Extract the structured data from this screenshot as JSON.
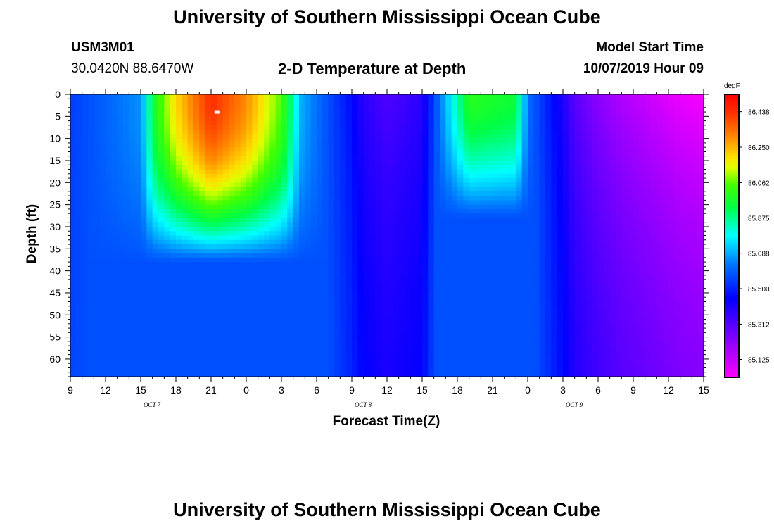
{
  "header": {
    "title": "University of Southern Mississippi Ocean Cube",
    "station_id": "USM3M01",
    "location": "30.0420N 88.6470W",
    "plot_title": "2-D Temperature at Depth",
    "model_start_label": "Model Start Time",
    "model_start_value": "10/07/2019 Hour 09"
  },
  "footer": {
    "title": "University of Southern Mississippi Ocean Cube"
  },
  "chart_data": {
    "type": "heatmap",
    "title": "2-D Temperature at Depth",
    "xlabel": "Forecast Time(Z)",
    "ylabel": "Depth (ft)",
    "unit": "degF",
    "x_tick_labels": [
      "9",
      "12",
      "15",
      "18",
      "21",
      "0",
      "3",
      "6",
      "9",
      "12",
      "15",
      "18",
      "21",
      "0",
      "3",
      "6",
      "9",
      "12",
      "15"
    ],
    "x_day_labels": [
      {
        "label": "OCT 7",
        "tick_index": 2
      },
      {
        "label": "OCT 8",
        "tick_index": 8
      },
      {
        "label": "OCT 9",
        "tick_index": 14
      }
    ],
    "x_range_hours": [
      0,
      54
    ],
    "y_tick_labels": [
      "0",
      "5",
      "10",
      "15",
      "20",
      "25",
      "30",
      "35",
      "40",
      "45",
      "50",
      "55",
      "60"
    ],
    "y_range_ft": [
      0,
      64
    ],
    "colorbar_levels": [
      "86.438",
      "86.250",
      "86.062",
      "85.875",
      "85.688",
      "85.500",
      "85.312",
      "85.125"
    ],
    "value_range_degF": [
      85.03,
      86.53
    ],
    "surface_profile_hour_temp_degF": [
      [
        0,
        85.54
      ],
      [
        3,
        85.6
      ],
      [
        6,
        85.66
      ],
      [
        6.5,
        85.78
      ],
      [
        7,
        85.95
      ],
      [
        9,
        86.2
      ],
      [
        12,
        86.44
      ],
      [
        15,
        86.3
      ],
      [
        18,
        86.05
      ],
      [
        19,
        85.85
      ],
      [
        19.5,
        85.7
      ],
      [
        21,
        85.62
      ],
      [
        24,
        85.46
      ],
      [
        25,
        85.38
      ],
      [
        27,
        85.32
      ],
      [
        30,
        85.38
      ],
      [
        31,
        85.55
      ],
      [
        34,
        86.0
      ],
      [
        38,
        85.95
      ],
      [
        39,
        85.62
      ],
      [
        42,
        85.4
      ],
      [
        43,
        85.3
      ],
      [
        45,
        85.22
      ],
      [
        47,
        85.16
      ],
      [
        52,
        85.06
      ],
      [
        54,
        85.04
      ]
    ],
    "max_marker": {
      "hour": 12.5,
      "depth_ft": 4
    }
  }
}
